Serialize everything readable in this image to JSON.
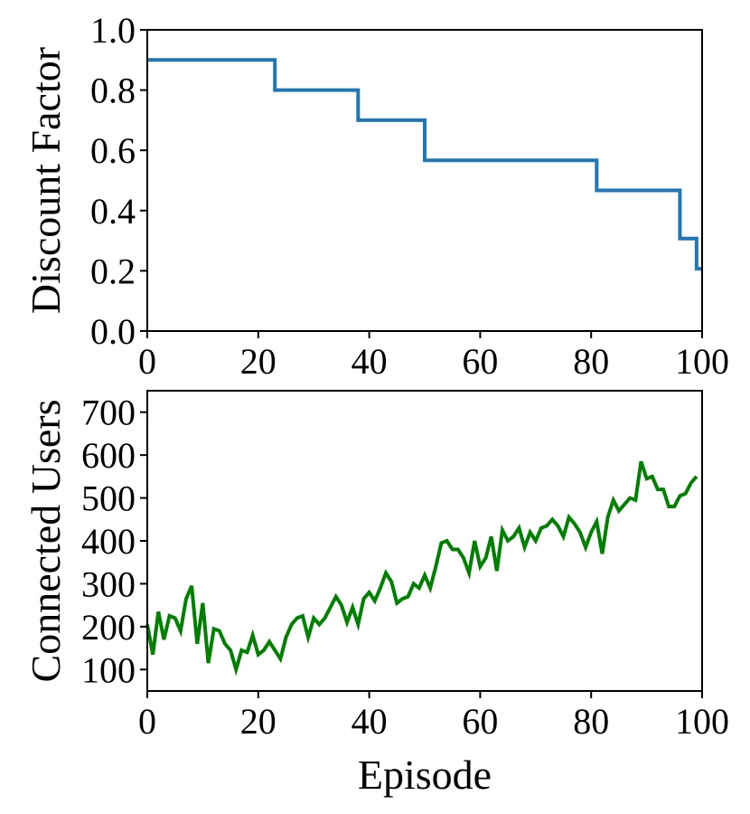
{
  "chart_data": [
    {
      "type": "line",
      "ylabel": "Discount Factor",
      "xlabel": "",
      "xlim": [
        0,
        100
      ],
      "ylim": [
        0.0,
        1.0
      ],
      "xticks": [
        0,
        20,
        40,
        60,
        80,
        100
      ],
      "xtick_labels": [
        "0",
        "20",
        "40",
        "60",
        "80",
        "100"
      ],
      "yticks": [
        0.0,
        0.2,
        0.4,
        0.6,
        0.8,
        1.0
      ],
      "ytick_labels": [
        "0.0",
        "0.2",
        "0.4",
        "0.6",
        "0.8",
        "1.0"
      ],
      "grid": false,
      "series": [
        {
          "color": "#1f77b4",
          "step": true,
          "x": [
            0,
            23,
            23,
            38,
            38,
            50,
            50,
            81,
            81,
            96,
            96,
            99,
            99,
            100
          ],
          "y": [
            0.9,
            0.9,
            0.8,
            0.8,
            0.7,
            0.7,
            0.567,
            0.567,
            0.467,
            0.467,
            0.307,
            0.307,
            0.207,
            0.207
          ]
        }
      ]
    },
    {
      "type": "line",
      "ylabel": "Connected Users",
      "xlabel": "Episode",
      "xlim": [
        0,
        100
      ],
      "ylim": [
        50,
        750
      ],
      "xticks": [
        0,
        20,
        40,
        60,
        80,
        100
      ],
      "xtick_labels": [
        "0",
        "20",
        "40",
        "60",
        "80",
        "100"
      ],
      "yticks": [
        100,
        200,
        300,
        400,
        500,
        600,
        700
      ],
      "ytick_labels": [
        "100",
        "200",
        "300",
        "400",
        "500",
        "600",
        "700"
      ],
      "grid": false,
      "series": [
        {
          "color": "#008000",
          "x": [
            0,
            1,
            2,
            3,
            4,
            5,
            6,
            7,
            8,
            9,
            10,
            11,
            12,
            13,
            14,
            15,
            16,
            17,
            18,
            19,
            20,
            21,
            22,
            23,
            24,
            25,
            26,
            27,
            28,
            29,
            30,
            31,
            32,
            33,
            34,
            35,
            36,
            37,
            38,
            39,
            40,
            41,
            42,
            43,
            44,
            45,
            46,
            47,
            48,
            49,
            50,
            51,
            52,
            53,
            54,
            55,
            56,
            57,
            58,
            59,
            60,
            61,
            62,
            63,
            64,
            65,
            66,
            67,
            68,
            69,
            70,
            71,
            72,
            73,
            74,
            75,
            76,
            77,
            78,
            79,
            80,
            81,
            82,
            83,
            84,
            85,
            86,
            87,
            88,
            89,
            90,
            91,
            92,
            93,
            94,
            95,
            96,
            97,
            98,
            99
          ],
          "y": [
            205,
            135,
            235,
            170,
            225,
            220,
            190,
            265,
            295,
            160,
            255,
            115,
            195,
            190,
            160,
            145,
            100,
            145,
            140,
            180,
            135,
            145,
            165,
            145,
            125,
            175,
            205,
            220,
            225,
            175,
            220,
            205,
            220,
            245,
            270,
            250,
            210,
            245,
            205,
            265,
            280,
            260,
            290,
            325,
            305,
            255,
            265,
            270,
            300,
            290,
            320,
            290,
            340,
            395,
            400,
            380,
            380,
            360,
            325,
            400,
            340,
            360,
            410,
            330,
            425,
            400,
            410,
            430,
            385,
            420,
            400,
            430,
            435,
            450,
            435,
            410,
            455,
            440,
            420,
            385,
            420,
            445,
            370,
            455,
            495,
            470,
            485,
            500,
            495,
            585,
            545,
            550,
            520,
            520,
            480,
            480,
            505,
            510,
            535,
            550
          ]
        }
      ]
    }
  ]
}
